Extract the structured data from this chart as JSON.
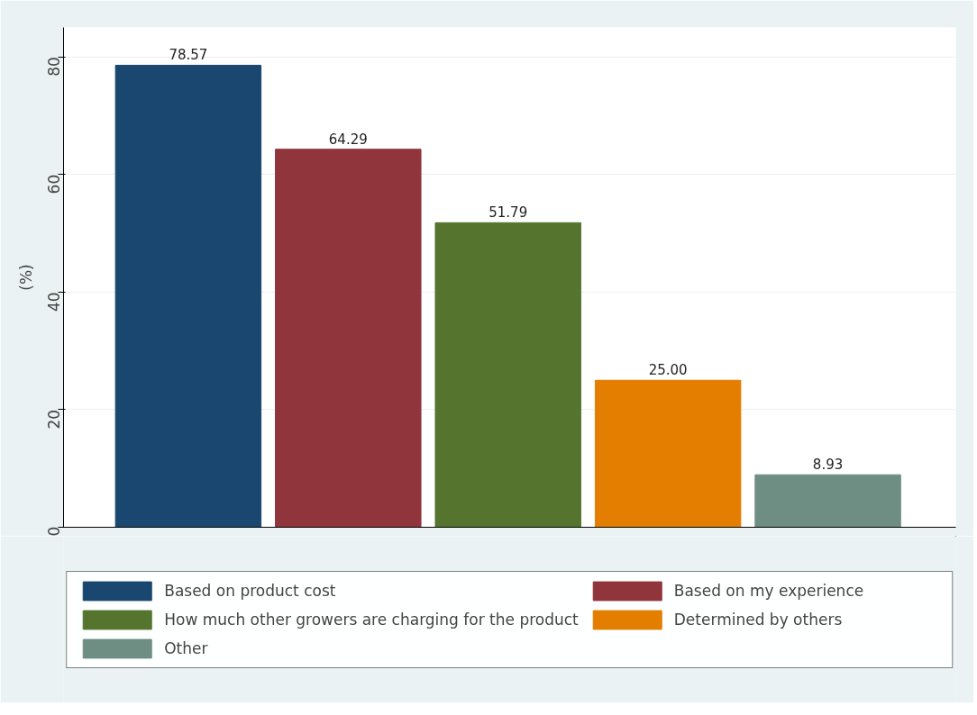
{
  "chart_data": {
    "type": "bar",
    "categories": [
      null
    ],
    "ylabel": "(%)",
    "ylim": [
      0,
      85
    ],
    "yticks": [
      0,
      20,
      40,
      60,
      80
    ],
    "grid": "y",
    "legend": "bottom",
    "tick_labels": "y",
    "series": [
      {
        "name": "Based on product cost",
        "color": "#1a476f",
        "values": [
          78.57
        ],
        "value_labels": [
          "78.57"
        ]
      },
      {
        "name": "Based on my experience",
        "color": "#90353b",
        "values": [
          64.29
        ],
        "value_labels": [
          "64.29"
        ]
      },
      {
        "name": "How much other growers are charging for the product",
        "color": "#55752f",
        "values": [
          51.79
        ],
        "value_labels": [
          "51.79"
        ]
      },
      {
        "name": "Determined by others",
        "color": "#e37e00",
        "values": [
          25
        ],
        "value_labels": [
          "25.00"
        ]
      },
      {
        "name": "Other",
        "color": "#6e8e84",
        "values": [
          8.93
        ],
        "value_labels": [
          "8.93"
        ]
      }
    ]
  }
}
